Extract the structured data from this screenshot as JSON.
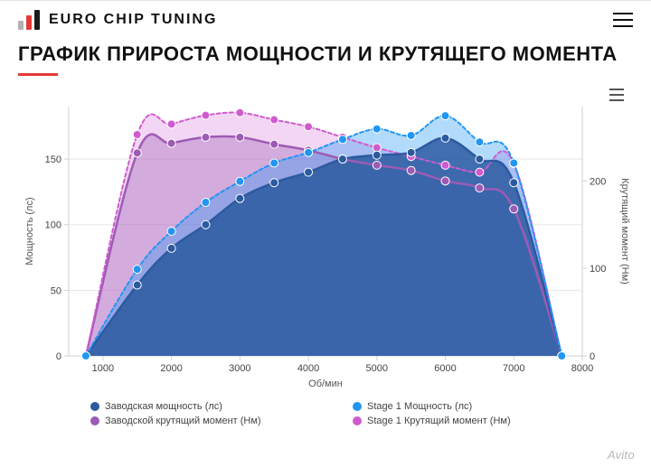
{
  "header": {
    "brand_name": "EURO CHIP TUNING",
    "logo_colors": {
      "bar1": "#b0b0b0",
      "bar2": "#e53935",
      "bar3": "#1a1a1a"
    }
  },
  "title": "ГРАФИК ПРИРОСТА МОЩНОСТИ И КРУТЯЩЕГО МОМЕНТА",
  "accent_color": "#e53935",
  "chart": {
    "type": "line-area-dual-axis",
    "background_color": "#ffffff",
    "plot_bg": "#ffffff",
    "grid_color": "#e8e8e8",
    "axis_color": "#cfd2d6",
    "x": {
      "label": "Об/мин",
      "min": 500,
      "max": 8000,
      "ticks": [
        1000,
        2000,
        3000,
        4000,
        5000,
        6000,
        7000,
        8000
      ]
    },
    "y_left": {
      "label": "Мощность (лс)",
      "min": 0,
      "max": 190,
      "ticks": [
        0,
        50,
        100,
        150
      ]
    },
    "y_right": {
      "label": "Крутящий момент (Нм)",
      "min": 0,
      "max": 285,
      "ticks": [
        0,
        100,
        200
      ]
    },
    "series": [
      {
        "id": "power_stock",
        "label": "Заводская мощность (лс)",
        "axis": "left",
        "color": "#2b5aa0",
        "fill": "#2b5aa0",
        "fill_opacity": 0.85,
        "line_width": 2.5,
        "dash": "none",
        "marker": "circle",
        "marker_size": 4.5,
        "data": [
          {
            "x": 750,
            "y": 0
          },
          {
            "x": 1500,
            "y": 54
          },
          {
            "x": 2000,
            "y": 82
          },
          {
            "x": 2500,
            "y": 100
          },
          {
            "x": 3000,
            "y": 120
          },
          {
            "x": 3500,
            "y": 132
          },
          {
            "x": 4000,
            "y": 140
          },
          {
            "x": 4500,
            "y": 150
          },
          {
            "x": 5000,
            "y": 153
          },
          {
            "x": 5500,
            "y": 155
          },
          {
            "x": 6000,
            "y": 166
          },
          {
            "x": 6500,
            "y": 150
          },
          {
            "x": 7000,
            "y": 132
          },
          {
            "x": 7700,
            "y": 0
          }
        ]
      },
      {
        "id": "power_stage1",
        "label": "Stage 1 Мощность (лс)",
        "axis": "left",
        "color": "#2196f3",
        "fill": "#2196f3",
        "fill_opacity": 0.35,
        "line_width": 2,
        "dash": "4 3",
        "marker": "circle",
        "marker_size": 4.5,
        "data": [
          {
            "x": 750,
            "y": 0
          },
          {
            "x": 1500,
            "y": 66
          },
          {
            "x": 2000,
            "y": 95
          },
          {
            "x": 2500,
            "y": 117
          },
          {
            "x": 3000,
            "y": 133
          },
          {
            "x": 3500,
            "y": 147
          },
          {
            "x": 4000,
            "y": 155
          },
          {
            "x": 4500,
            "y": 165
          },
          {
            "x": 5000,
            "y": 173
          },
          {
            "x": 5500,
            "y": 168
          },
          {
            "x": 6000,
            "y": 183
          },
          {
            "x": 6500,
            "y": 163
          },
          {
            "x": 7000,
            "y": 147
          },
          {
            "x": 7700,
            "y": 0
          }
        ]
      },
      {
        "id": "torque_stock",
        "label": "Заводской крутящий момент (Нм)",
        "axis": "right",
        "color": "#9c5bb5",
        "fill": "#9c5bb5",
        "fill_opacity": 0.35,
        "line_width": 2.5,
        "dash": "none",
        "marker": "circle",
        "marker_size": 4.5,
        "data": [
          {
            "x": 750,
            "y": 0
          },
          {
            "x": 1500,
            "y": 232
          },
          {
            "x": 2000,
            "y": 243
          },
          {
            "x": 2500,
            "y": 250
          },
          {
            "x": 3000,
            "y": 250
          },
          {
            "x": 3500,
            "y": 242
          },
          {
            "x": 4000,
            "y": 235
          },
          {
            "x": 4500,
            "y": 225
          },
          {
            "x": 5000,
            "y": 218
          },
          {
            "x": 5500,
            "y": 212
          },
          {
            "x": 6000,
            "y": 200
          },
          {
            "x": 6500,
            "y": 192
          },
          {
            "x": 7000,
            "y": 168
          },
          {
            "x": 7700,
            "y": 0
          }
        ]
      },
      {
        "id": "torque_stage1",
        "label": "Stage 1 Крутящий момент (Нм)",
        "axis": "right",
        "color": "#d05ad0",
        "fill": "#d05ad0",
        "fill_opacity": 0.25,
        "line_width": 2,
        "dash": "4 3",
        "marker": "circle",
        "marker_size": 4.5,
        "data": [
          {
            "x": 750,
            "y": 0
          },
          {
            "x": 1500,
            "y": 253
          },
          {
            "x": 2000,
            "y": 265
          },
          {
            "x": 2500,
            "y": 275
          },
          {
            "x": 3000,
            "y": 278
          },
          {
            "x": 3500,
            "y": 270
          },
          {
            "x": 4000,
            "y": 262
          },
          {
            "x": 4500,
            "y": 250
          },
          {
            "x": 5000,
            "y": 238
          },
          {
            "x": 5500,
            "y": 228
          },
          {
            "x": 6000,
            "y": 218
          },
          {
            "x": 6500,
            "y": 210
          },
          {
            "x": 7000,
            "y": 220
          },
          {
            "x": 7700,
            "y": 0
          }
        ]
      }
    ]
  },
  "watermark": "Avito"
}
